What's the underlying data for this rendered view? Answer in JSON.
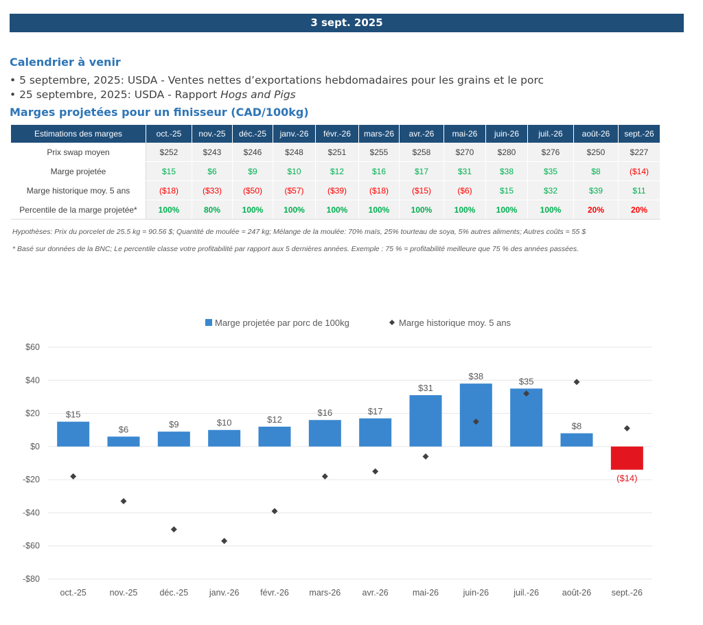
{
  "header": {
    "date": "3 sept. 2025"
  },
  "calendar": {
    "title": "Calendrier à venir",
    "items": [
      {
        "text": "• 5 septembre, 2025: USDA - Ventes nettes d’exportations hebdomadaires pour les grains et le porc",
        "italic": ""
      },
      {
        "text": "• 25 septembre, 2025: USDA - Rapport ",
        "italic": "Hogs and Pigs"
      }
    ]
  },
  "table": {
    "title": "Marges projetées pour un finisseur (CAD/100kg)",
    "corner": "Estimations des marges",
    "months": [
      "oct.-25",
      "nov.-25",
      "déc.-25",
      "janv.-26",
      "févr.-26",
      "mars-26",
      "avr.-26",
      "mai-26",
      "juin-26",
      "juil.-26",
      "août-26",
      "sept.-26"
    ],
    "rows": [
      {
        "label": "Prix swap moyen",
        "cells": [
          "$252",
          "$243",
          "$246",
          "$248",
          "$251",
          "$255",
          "$258",
          "$270",
          "$280",
          "$276",
          "$250",
          "$227"
        ]
      },
      {
        "label": "Marge projetée",
        "cells": [
          "$15",
          "$6",
          "$9",
          "$10",
          "$12",
          "$16",
          "$17",
          "$31",
          "$38",
          "$35",
          "$8",
          "($14)"
        ]
      },
      {
        "label": "Marge historique moy. 5 ans",
        "cells": [
          "($18)",
          "($33)",
          "($50)",
          "($57)",
          "($39)",
          "($18)",
          "($15)",
          "($6)",
          "$15",
          "$32",
          "$39",
          "$11"
        ]
      },
      {
        "label": "Percentile de la marge projetée*",
        "cells": [
          "100%",
          "80%",
          "100%",
          "100%",
          "100%",
          "100%",
          "100%",
          "100%",
          "100%",
          "100%",
          "20%",
          "20%"
        ]
      }
    ],
    "note1": "Hypothèses: Prix du porcelet de 25.5 kg = 90.56 $; Quantité de moulée = 247 kg; Mélange de la moulée: 70% maïs, 25% tourteau de soya, 5% autres aliments; Autres coûts = 55 $",
    "note2": "* Basé sur données de la BNC; Le percentile classe votre profitabilité par rapport aux 5 dernières années. Exemple : 75 % = profitabilité meilleure que 75 % des années passées."
  },
  "chart_data": {
    "type": "bar",
    "categories": [
      "oct.-25",
      "nov.-25",
      "déc.-25",
      "janv.-26",
      "févr.-26",
      "mars-26",
      "avr.-26",
      "mai-26",
      "juin-26",
      "juil.-26",
      "août-26",
      "sept.-26"
    ],
    "series": [
      {
        "name": "Marge projetée par porc de 100kg",
        "type": "bar",
        "values": [
          15,
          6,
          9,
          10,
          12,
          16,
          17,
          31,
          38,
          35,
          8,
          -14
        ],
        "labels": [
          "$15",
          "$6",
          "$9",
          "$10",
          "$12",
          "$16",
          "$17",
          "$31",
          "$38",
          "$35",
          "$8",
          "($14)"
        ]
      },
      {
        "name": "Marge historique moy. 5 ans",
        "type": "scatter",
        "values": [
          -18,
          -33,
          -50,
          -57,
          -39,
          -18,
          -15,
          -6,
          15,
          32,
          39,
          11
        ]
      }
    ],
    "ylim": [
      -80,
      60
    ],
    "yticks": [
      60,
      40,
      20,
      0,
      -20,
      -40,
      -60,
      -80
    ],
    "ytick_labels": [
      "$60",
      "$40",
      "$20",
      "$0",
      "-$20",
      "-$40",
      "-$60",
      "-$80"
    ],
    "grid": true,
    "legend": "top",
    "colors": {
      "bar": "#3a87d0",
      "bar_negative": "#e3161f",
      "marker": "#404040",
      "negative_label": "#e3161f"
    }
  }
}
